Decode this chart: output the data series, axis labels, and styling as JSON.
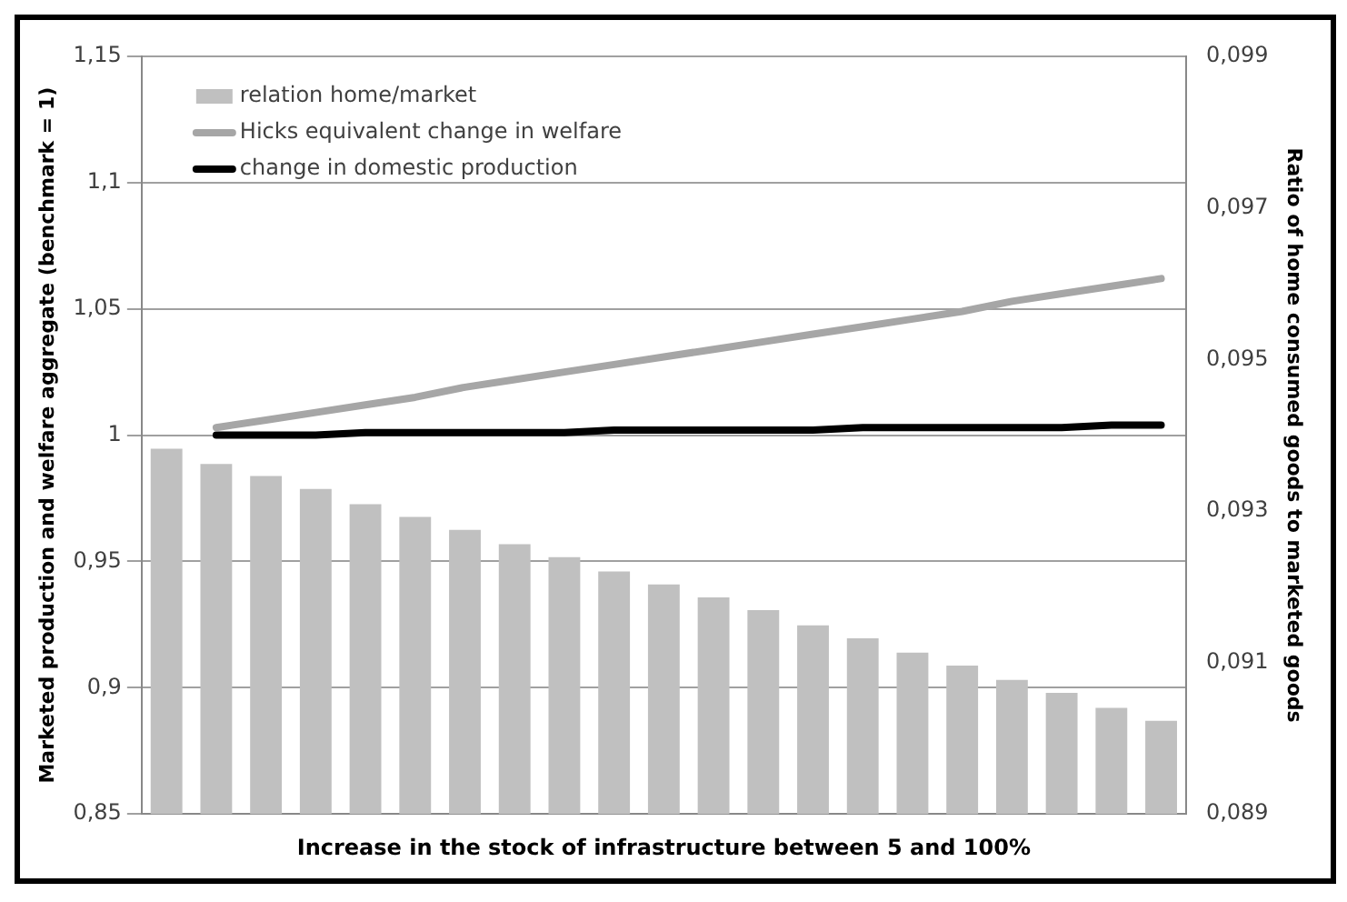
{
  "chart_data": {
    "type": "bar",
    "xlabel": "Increase in the stock of infrastructure between 5 and 100%",
    "ylabel": "Marketed production and welfare aggregate (benchmark = 1)",
    "y2label": "Ratio of home consumed goods to marketed goods",
    "categories": [
      null,
      null,
      null,
      null,
      null,
      null,
      null,
      null,
      null,
      null,
      null,
      null,
      null,
      null,
      null,
      null,
      null,
      null,
      null,
      null,
      null
    ],
    "series": [
      {
        "name": "relation home/market",
        "axis": "y2",
        "color": "#c0c0c0",
        "values": [
          0.09382,
          0.09362,
          0.09346,
          0.09329,
          0.09309,
          0.09292,
          0.09275,
          0.09256,
          0.09239,
          0.0922,
          0.09203,
          0.09186,
          0.09169,
          0.09149,
          0.09132,
          0.09113,
          0.09096,
          0.09077,
          0.0906,
          0.0904,
          0.09023
        ]
      },
      {
        "name": "Hicks equivalent change in welfare",
        "type": "line",
        "color": "#a6a6a6",
        "values": [
          null,
          1.003,
          1.006,
          1.009,
          1.012,
          1.015,
          1.019,
          1.022,
          1.025,
          1.028,
          1.031,
          1.034,
          1.037,
          1.04,
          1.043,
          1.046,
          1.049,
          1.053,
          1.056,
          1.059,
          1.062
        ]
      },
      {
        "name": "change in domestic production",
        "type": "line",
        "color": "#000000",
        "values": [
          null,
          1.0,
          1.0,
          1.0,
          1.001,
          1.001,
          1.001,
          1.001,
          1.001,
          1.002,
          1.002,
          1.002,
          1.002,
          1.002,
          1.003,
          1.003,
          1.003,
          1.003,
          1.003,
          1.004,
          1.004
        ]
      }
    ],
    "ylim": [
      0.85,
      1.15
    ],
    "yticks": [
      {
        "value": 0.85,
        "label": "0,85"
      },
      {
        "value": 0.9,
        "label": "0,9"
      },
      {
        "value": 0.95,
        "label": "0,95"
      },
      1,
      {
        "value": 1.05,
        "label": "1,05"
      },
      {
        "value": 1.1,
        "label": "1,1"
      },
      {
        "value": 1.15,
        "label": "1,15"
      }
    ],
    "y2lim": [
      0.089,
      0.099
    ],
    "y2ticks": [
      {
        "value": 0.089,
        "label": "0,089"
      },
      {
        "value": 0.091,
        "label": "0,091"
      },
      {
        "value": 0.093,
        "label": "0,093"
      },
      {
        "value": 0.095,
        "label": "0,095"
      },
      {
        "value": 0.097,
        "label": "0,097"
      },
      {
        "value": 0.099,
        "label": "0,099"
      }
    ],
    "grid": "y",
    "legend": "top left",
    "tick_labels": "y",
    "marker": "none",
    "line_style": "solid"
  }
}
